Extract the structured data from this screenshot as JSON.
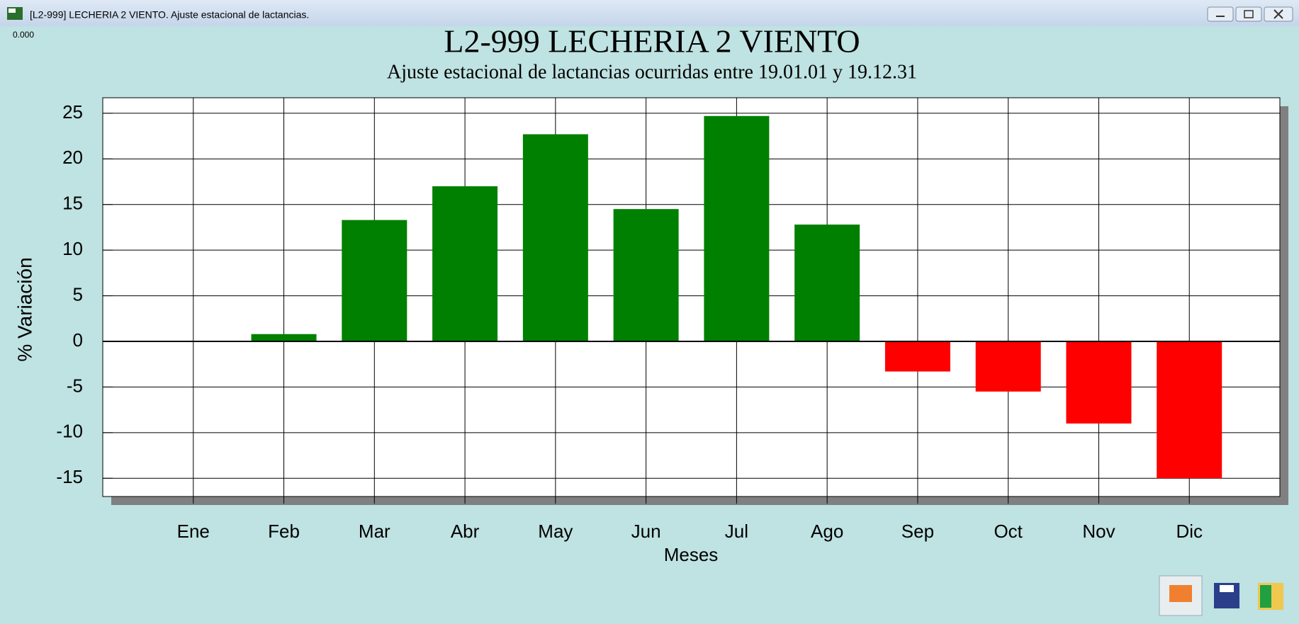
{
  "window": {
    "title": "[L2-999] LECHERIA 2 VIENTO. Ajuste estacional de lactancias.",
    "corner_label": "0.000"
  },
  "chart_data": {
    "type": "bar",
    "title": "L2-999 LECHERIA 2 VIENTO",
    "subtitle": "Ajuste estacional de lactancias ocurridas entre 19.01.01 y 19.12.31",
    "x_label": "Meses",
    "y_label": "% Variación",
    "categories": [
      "Ene",
      "Feb",
      "Mar",
      "Abr",
      "May",
      "Jun",
      "Jul",
      "Ago",
      "Sep",
      "Oct",
      "Nov",
      "Dic"
    ],
    "values": [
      0,
      0.8,
      13.3,
      17.0,
      22.7,
      14.5,
      24.7,
      12.8,
      -3.3,
      -5.5,
      -9.0,
      -15.0
    ],
    "positive_color": "#008000",
    "negative_color": "#ff0000",
    "ylim": [
      -17,
      26.7
    ],
    "yticks": [
      -15,
      -10,
      -5,
      0,
      5,
      10,
      15,
      20,
      25
    ],
    "grid": true
  }
}
